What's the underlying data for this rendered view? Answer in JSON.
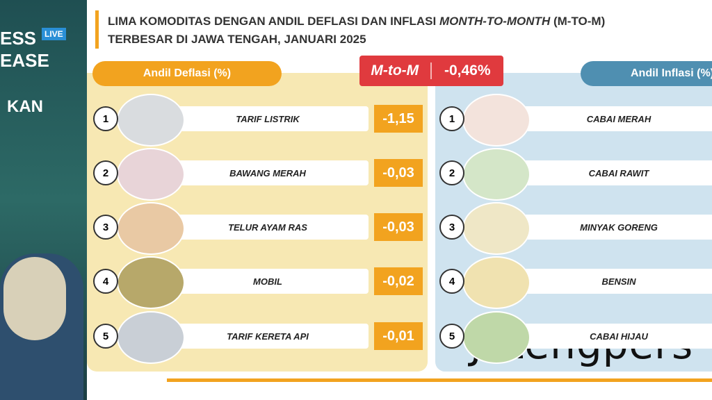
{
  "header": {
    "title_line1": "LIMA KOMODITAS DENGAN ANDIL DEFLASI DAN INFLASI",
    "title_em": "MONTH-TO-MONTH",
    "title_tail": "(M-TO-M)",
    "title_line2": "TERBESAR DI JAWA TENGAH, JANUARI 2025"
  },
  "badge": {
    "label": "M-to-M",
    "value": "-0,46%"
  },
  "deflasi": {
    "heading": "Andil Deflasi (%)",
    "items": [
      {
        "rank": "1",
        "name": "TARIF LISTRIK",
        "value": "-1,15"
      },
      {
        "rank": "2",
        "name": "BAWANG MERAH",
        "value": "-0,03"
      },
      {
        "rank": "3",
        "name": "TELUR AYAM RAS",
        "value": "-0,03"
      },
      {
        "rank": "4",
        "name": "MOBIL",
        "value": "-0,02"
      },
      {
        "rank": "5",
        "name": "TARIF KERETA API",
        "value": "-0,01"
      }
    ]
  },
  "inflasi": {
    "heading": "Andil Inflasi (%)",
    "items": [
      {
        "rank": "1",
        "name": "CABAI MERAH"
      },
      {
        "rank": "2",
        "name": "CABAI RAWIT"
      },
      {
        "rank": "3",
        "name": "MINYAK GORENG"
      },
      {
        "rank": "4",
        "name": "BENSIN"
      },
      {
        "rank": "5",
        "name": "CABAI HIJAU"
      }
    ]
  },
  "sidebar": {
    "live": "LIVE",
    "press": "ESS",
    "release": "EASE",
    "kan": "KAN"
  },
  "watermark": "Jatengpers"
}
